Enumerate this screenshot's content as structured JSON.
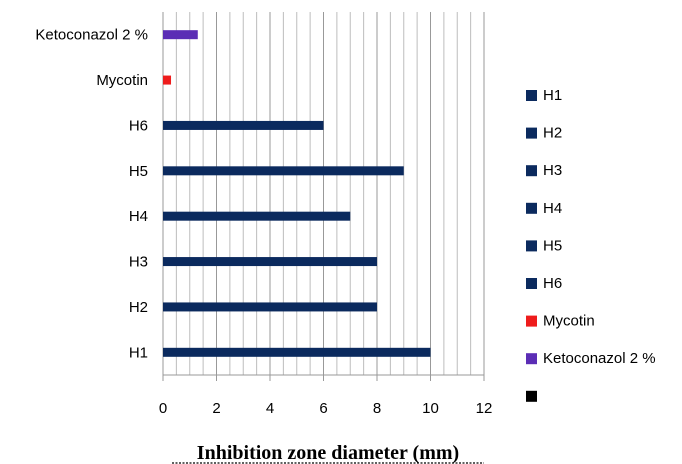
{
  "chart_data": {
    "type": "bar",
    "orientation": "horizontal",
    "categories": [
      "H1",
      "H2",
      "H3",
      "H4",
      "H5",
      "H6",
      "Mycotin",
      "Ketoconazol 2 %"
    ],
    "values": [
      10,
      8,
      8,
      7,
      9,
      6,
      0.3,
      1.3
    ],
    "bar_colors": [
      "#0b2a5e",
      "#0b2a5e",
      "#0b2a5e",
      "#0b2a5e",
      "#0b2a5e",
      "#0b2a5e",
      "#ee1c1c",
      "#5b2db5"
    ],
    "xlabel": "Inhibition zone diameter (mm)",
    "ylabel": "",
    "xlim": [
      0,
      12
    ],
    "xticks": [
      "0",
      "2",
      "4",
      "6",
      "8",
      "10",
      "12"
    ],
    "grid": "vertical minor lines every 0.5",
    "legend": {
      "placement": "right",
      "entries": [
        {
          "label": "H1",
          "color": "#0b2a5e"
        },
        {
          "label": "H2",
          "color": "#0b2a5e"
        },
        {
          "label": "H3",
          "color": "#0b2a5e"
        },
        {
          "label": "H4",
          "color": "#0b2a5e"
        },
        {
          "label": "H5",
          "color": "#0b2a5e"
        },
        {
          "label": "H6",
          "color": "#0b2a5e"
        },
        {
          "label": "Mycotin",
          "color": "#ee1c1c"
        },
        {
          "label": "Ketoconazol 2 %",
          "color": "#5b2db5"
        },
        {
          "label": "",
          "color": "#000000"
        }
      ]
    }
  }
}
